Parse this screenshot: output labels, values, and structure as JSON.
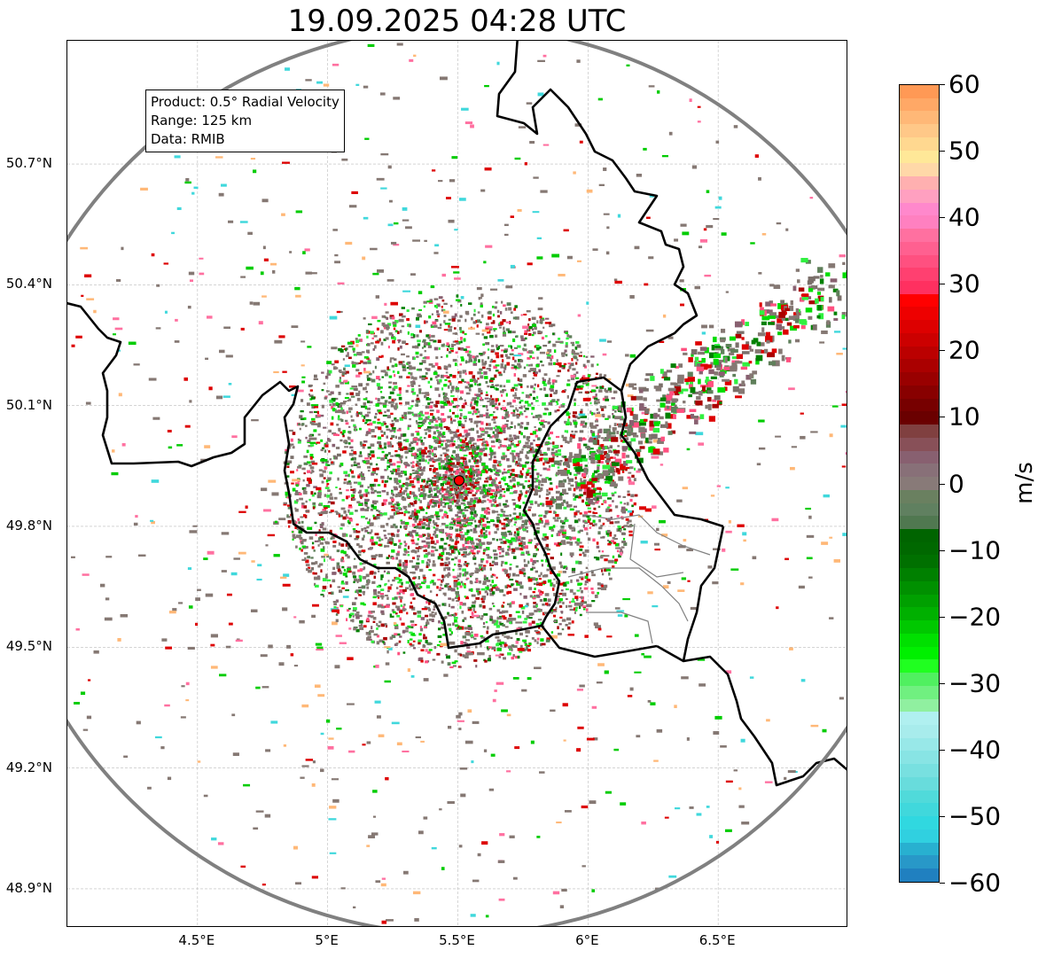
{
  "title": "19.09.2025 04:28 UTC",
  "info": {
    "product": "Product: 0.5° Radial Velocity",
    "range": "Range: 125 km",
    "data": "Data: RMIB"
  },
  "map": {
    "lat_ticks": [
      "50.7°N",
      "50.4°N",
      "50.1°N",
      "49.8°N",
      "49.5°N",
      "49.2°N",
      "48.9°N"
    ],
    "lat_values": [
      50.7,
      50.4,
      50.1,
      49.8,
      49.5,
      49.2,
      48.9
    ],
    "lon_ticks": [
      "4.5°E",
      "5°E",
      "5.5°E",
      "6°E",
      "6.5°E"
    ],
    "lon_values": [
      4.5,
      5.0,
      5.5,
      6.0,
      6.5
    ],
    "lon_range": [
      4.0,
      7.0
    ],
    "lat_range": [
      48.803,
      51.006
    ],
    "radar_site": {
      "lon": 5.505,
      "lat": 49.914,
      "color": "#ff0000"
    },
    "range_ring_color": "#808080"
  },
  "colorbar": {
    "unit": "m/s",
    "min": -60,
    "max": 60,
    "ticks": [
      "60",
      "50",
      "40",
      "30",
      "20",
      "10",
      "0",
      "−10",
      "−20",
      "−30",
      "−40",
      "−50",
      "−60"
    ],
    "tick_values": [
      60,
      50,
      40,
      30,
      20,
      10,
      0,
      -10,
      -20,
      -30,
      -40,
      -50,
      -60
    ],
    "colors_top_to_bottom": [
      "#ff9955",
      "#ffa866",
      "#ffb877",
      "#ffc888",
      "#ffd890",
      "#ffe898",
      "#ffd8a8",
      "#ffb0b0",
      "#ffa0c0",
      "#ff88cc",
      "#ff80c0",
      "#ff70a0",
      "#ff6090",
      "#ff5080",
      "#ff4070",
      "#ff3060",
      "#ff0000",
      "#ee0000",
      "#dd0000",
      "#cc0000",
      "#bb0000",
      "#aa0000",
      "#990000",
      "#880000",
      "#770000",
      "#6a0000",
      "#804040",
      "#885058",
      "#886070",
      "#887078",
      "#887a78",
      "#6a8060",
      "#608060",
      "#507850",
      "#006400",
      "#006800",
      "#007000",
      "#008000",
      "#009000",
      "#00a000",
      "#00b000",
      "#00c800",
      "#00e000",
      "#00f000",
      "#20ff20",
      "#50f060",
      "#70f080",
      "#90f0a0",
      "#b0f0f0",
      "#a8ecec",
      "#98e8e8",
      "#88e4e4",
      "#78e0e0",
      "#68dcdc",
      "#50dada",
      "#40d8dc",
      "#30d8e0",
      "#30d0e0",
      "#28b0d0",
      "#2898c8",
      "#2080c0"
    ]
  }
}
